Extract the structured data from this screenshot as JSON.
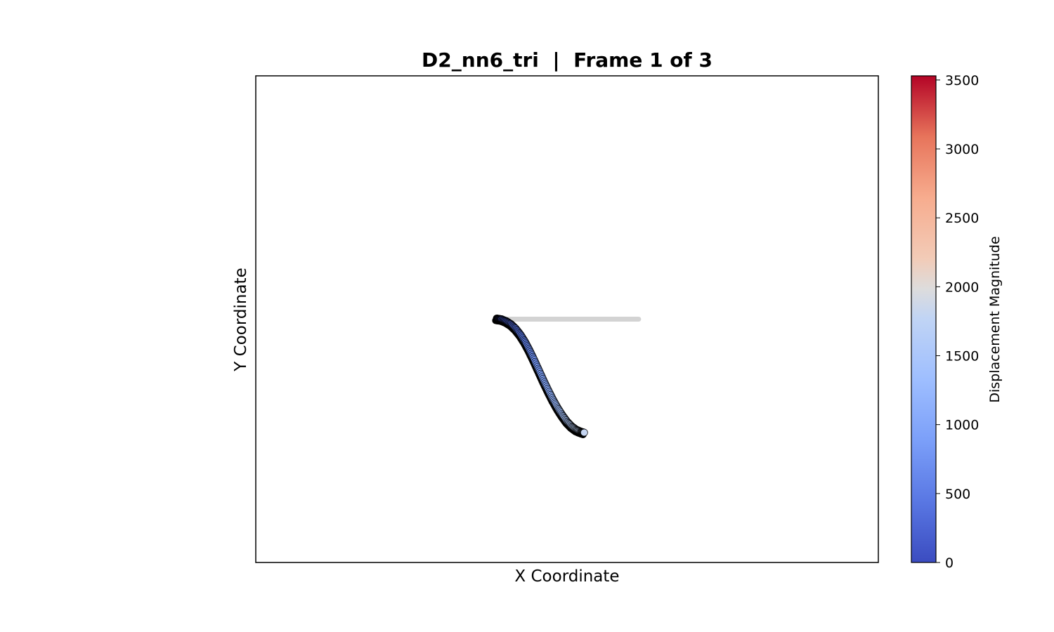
{
  "chart_data": {
    "type": "scatter",
    "title": "D2_nn6_tri  |  Frame 1 of 3",
    "xlabel": "X Coordinate",
    "ylabel": "Y Coordinate",
    "x_ticks_shown": false,
    "y_ticks_shown": false,
    "grid": false,
    "xlim": [
      -1,
      1
    ],
    "ylim": [
      -1,
      1
    ],
    "reference_line": {
      "description_color": "#d3d3d3",
      "x": [
        -0.2,
        0.23
      ],
      "y": [
        0.0,
        0.0
      ]
    },
    "beam_points": {
      "x": [
        -0.225,
        -0.205,
        -0.185,
        -0.165,
        -0.145,
        -0.125,
        -0.105,
        -0.085,
        -0.065,
        -0.045,
        -0.025,
        -0.005,
        0.015,
        0.035,
        0.055
      ],
      "y": [
        0.0,
        -0.003,
        -0.015,
        -0.04,
        -0.085,
        -0.145,
        -0.215,
        -0.285,
        -0.345,
        -0.395,
        -0.425,
        -0.43,
        -0.43,
        -0.43,
        -0.43
      ],
      "note_unused": ""
    },
    "series": [
      {
        "x": [
          -0.226,
          -0.22,
          -0.21,
          -0.195,
          -0.18,
          -0.165,
          -0.15,
          -0.135,
          -0.12,
          -0.105,
          -0.09,
          -0.075,
          -0.06,
          -0.045,
          -0.03,
          -0.015,
          0.0,
          0.015,
          0.03,
          0.045,
          0.055
        ],
        "y": [
          0.003,
          0.002,
          0.0,
          -0.008,
          -0.02,
          -0.038,
          -0.062,
          -0.092,
          -0.128,
          -0.168,
          -0.21,
          -0.252,
          -0.292,
          -0.33,
          -0.364,
          -0.394,
          -0.42,
          -0.44,
          -0.454,
          -0.462,
          -0.466
        ],
        "values": [
          0,
          40,
          90,
          160,
          240,
          330,
          420,
          520,
          620,
          730,
          840,
          950,
          1060,
          1170,
          1280,
          1390,
          1490,
          1590,
          1680,
          1760,
          1800
        ]
      }
    ],
    "colorbar": {
      "label": "Displacement Magnitude",
      "colormap": "coolwarm",
      "range": [
        0,
        3530
      ],
      "ticks": [
        "0",
        "500",
        "1000",
        "1500",
        "2000",
        "2500",
        "3000",
        "3500"
      ],
      "tick_values": [
        0,
        500,
        1000,
        1500,
        2000,
        2500,
        3000,
        3500
      ]
    }
  }
}
